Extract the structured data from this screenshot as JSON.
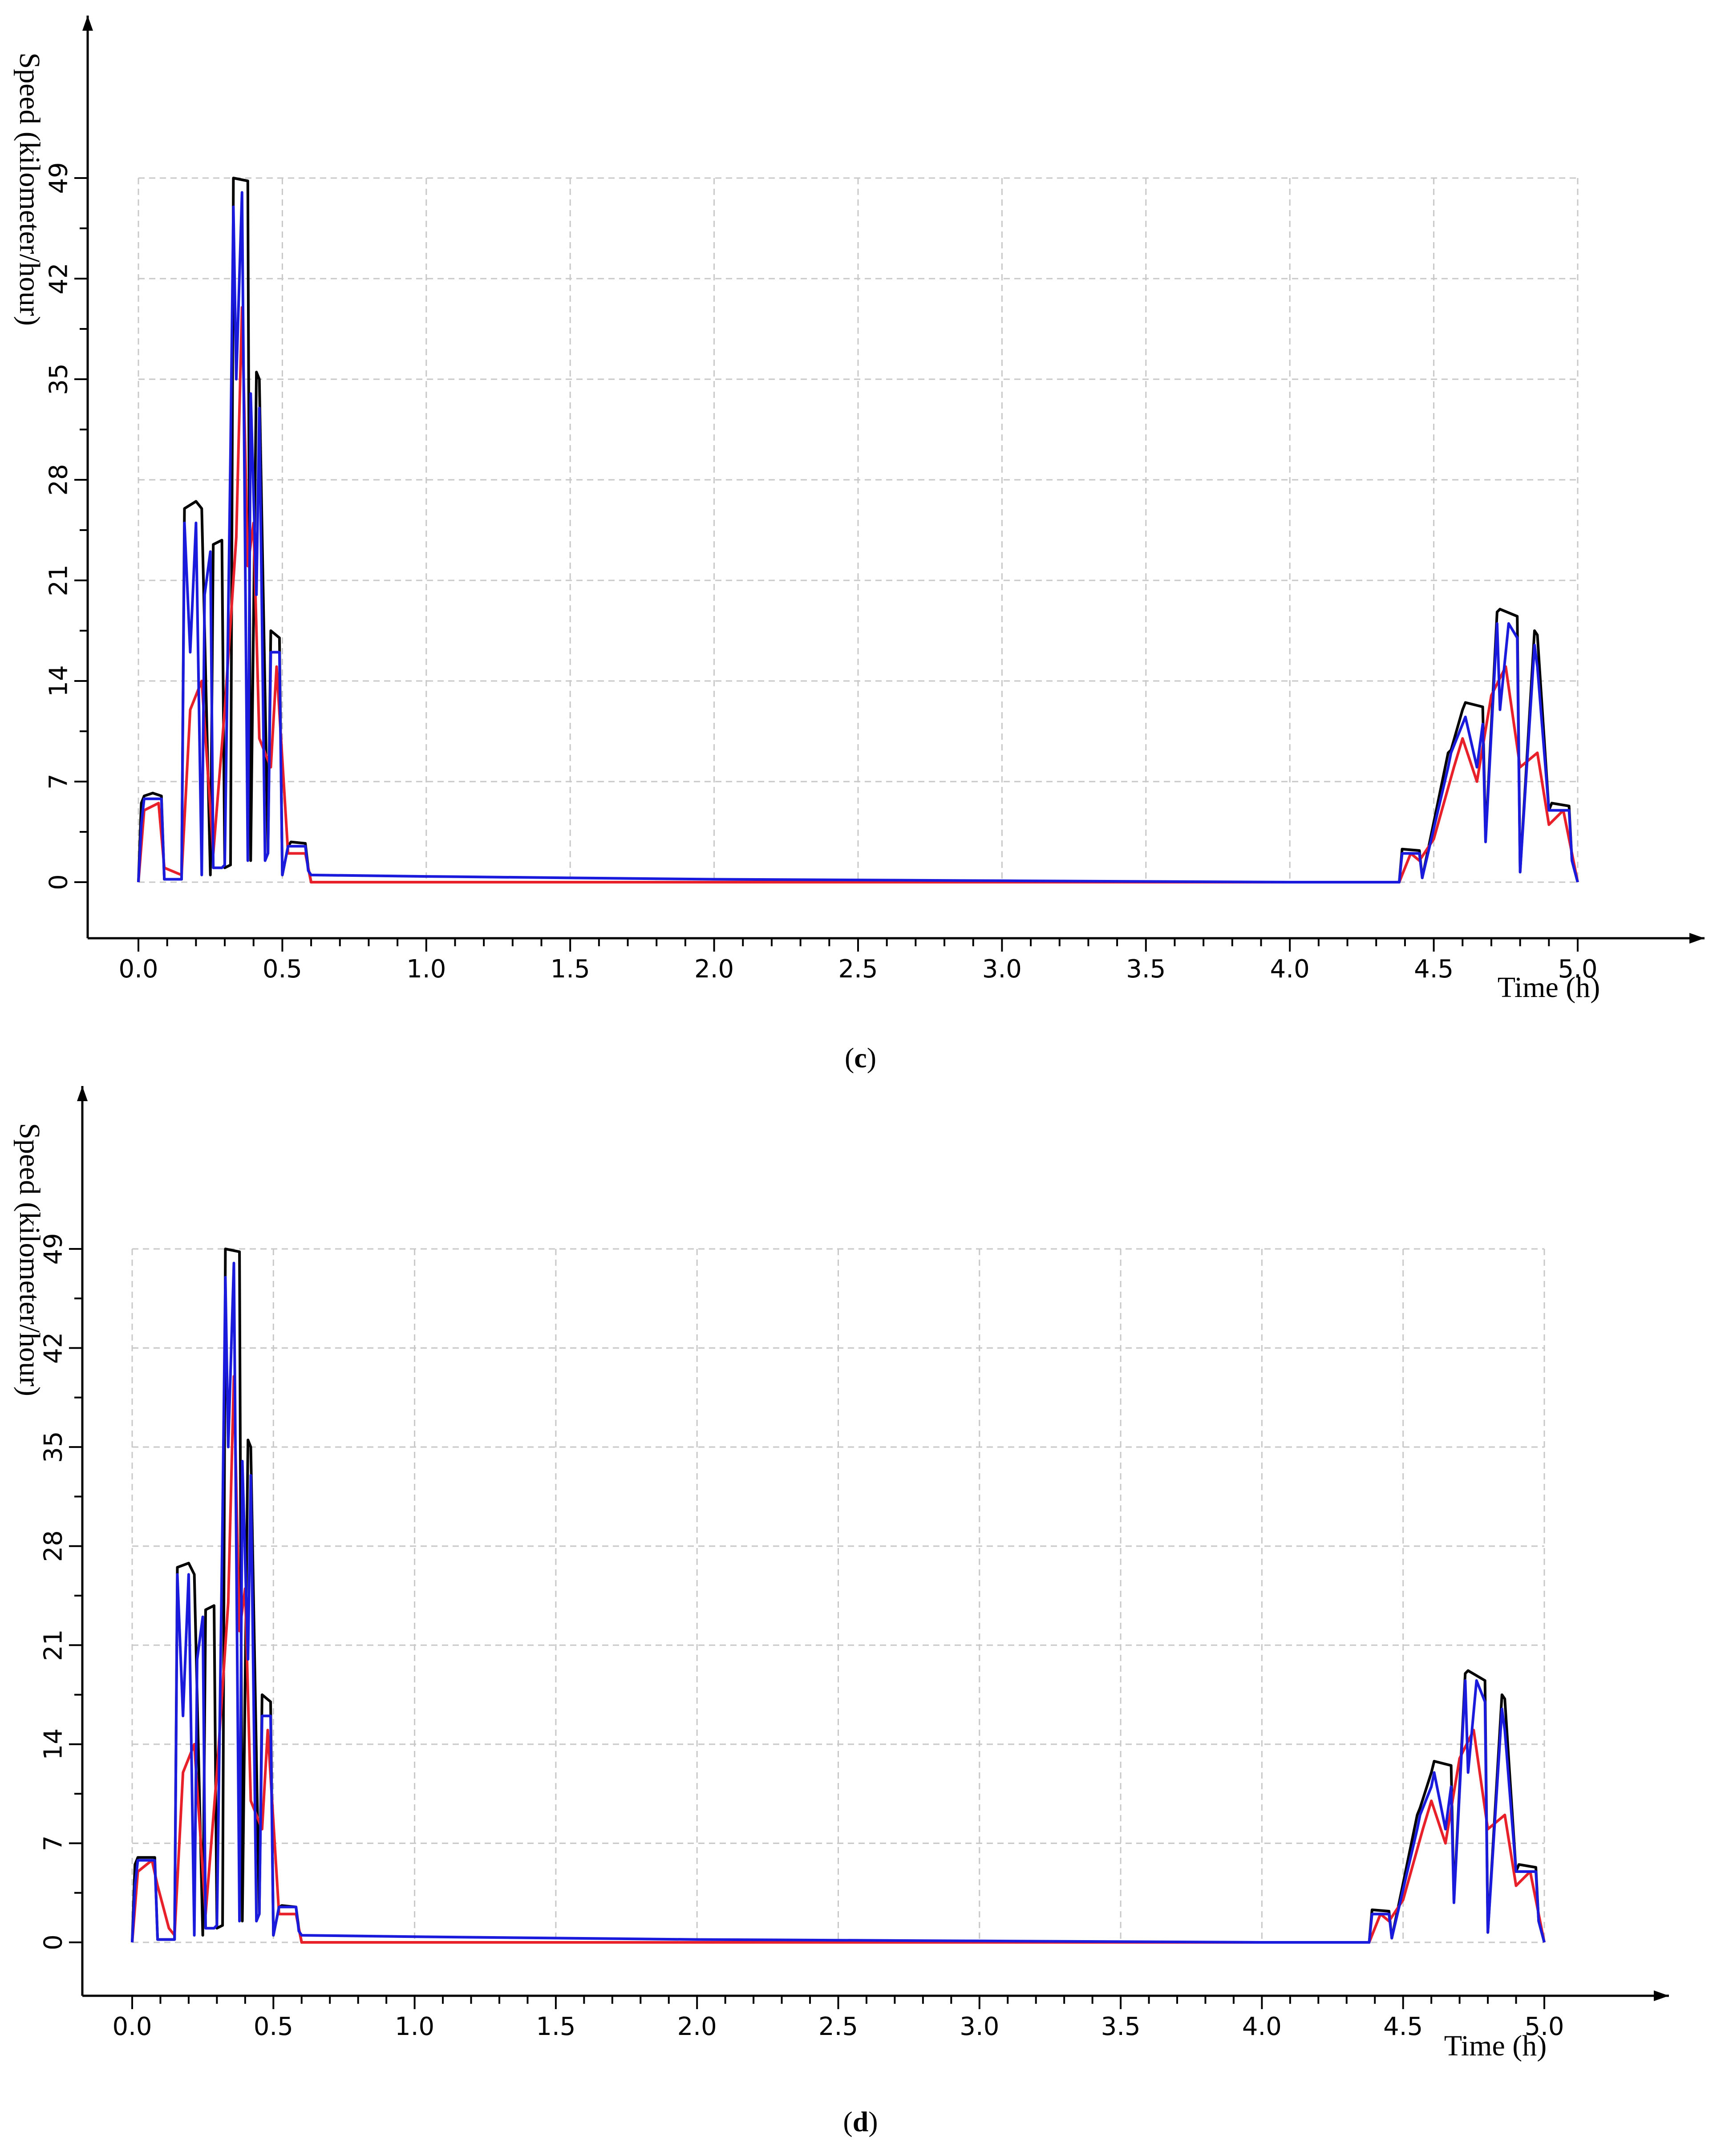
{
  "chart_data": [
    {
      "type": "line",
      "caption": "c",
      "xlabel": "Time (h)",
      "ylabel": "Speed (kilometer/hour)",
      "xlim": [
        0,
        5
      ],
      "ylim": [
        0,
        49
      ],
      "x_ticks": [
        "0.0",
        "0.5",
        "1.0",
        "1.5",
        "2.0",
        "2.5",
        "3.0",
        "3.5",
        "4.0",
        "4.5",
        "5.0"
      ],
      "y_ticks": [
        "0",
        "7",
        "14",
        "21",
        "28",
        "35",
        "42",
        "49"
      ],
      "grid": true,
      "series": [
        {
          "color": "#000000",
          "x": [
            0.0,
            0.01,
            0.02,
            0.05,
            0.08,
            0.09,
            0.15,
            0.16,
            0.2,
            0.22,
            0.25,
            0.26,
            0.29,
            0.3,
            0.32,
            0.33,
            0.38,
            0.39,
            0.41,
            0.42,
            0.45,
            0.46,
            0.49,
            0.5,
            0.52,
            0.53,
            0.58,
            0.59,
            0.6,
            1.0,
            2.0,
            3.0,
            4.0,
            4.38,
            4.39,
            4.45,
            4.46,
            4.55,
            4.56,
            4.6,
            4.61,
            4.67,
            4.68,
            4.72,
            4.73,
            4.79,
            4.8,
            4.85,
            4.86,
            4.9,
            4.91,
            4.97,
            4.98,
            5.0
          ],
          "y": [
            0,
            5.5,
            6,
            6.2,
            6,
            0.2,
            0.2,
            26,
            26.5,
            26,
            0.5,
            23.5,
            23.8,
            1,
            1.2,
            49,
            48.8,
            1.5,
            35.5,
            35,
            2,
            17.5,
            17,
            0.5,
            2.5,
            2.8,
            2.7,
            1,
            0,
            0,
            0,
            0,
            0,
            0,
            2.3,
            2.2,
            0.3,
            9,
            9.2,
            12,
            12.5,
            12.2,
            3,
            18.8,
            19,
            18.5,
            0.7,
            17.5,
            17.2,
            5,
            5.5,
            5.3,
            1.5,
            0
          ]
        },
        {
          "color": "#e8202a",
          "x": [
            0.0,
            0.02,
            0.07,
            0.09,
            0.15,
            0.18,
            0.22,
            0.26,
            0.3,
            0.34,
            0.36,
            0.38,
            0.4,
            0.42,
            0.46,
            0.48,
            0.52,
            0.58,
            0.6,
            1.0,
            2.0,
            3.0,
            4.0,
            4.1,
            4.38,
            4.42,
            4.45,
            4.5,
            4.57,
            4.6,
            4.65,
            4.7,
            4.75,
            4.8,
            4.86,
            4.9,
            4.95,
            4.98,
            5.0
          ],
          "y": [
            0,
            5,
            5.5,
            1,
            0.5,
            12,
            14,
            2,
            12,
            24,
            40,
            22,
            25,
            10,
            8,
            15,
            2,
            2,
            0,
            0,
            0,
            0,
            0,
            0,
            0,
            2,
            1.5,
            3,
            8,
            10,
            7,
            13,
            15,
            8,
            9,
            4,
            5,
            2,
            0
          ]
        },
        {
          "color": "#1a1adc",
          "x": [
            0.0,
            0.01,
            0.02,
            0.08,
            0.09,
            0.15,
            0.16,
            0.18,
            0.2,
            0.22,
            0.23,
            0.25,
            0.26,
            0.29,
            0.3,
            0.32,
            0.33,
            0.34,
            0.36,
            0.38,
            0.39,
            0.41,
            0.42,
            0.44,
            0.45,
            0.46,
            0.49,
            0.5,
            0.52,
            0.53,
            0.58,
            0.59,
            0.6,
            1.0,
            2.0,
            3.0,
            4.0,
            4.38,
            4.39,
            4.45,
            4.46,
            4.55,
            4.56,
            4.6,
            4.61,
            4.65,
            4.67,
            4.68,
            4.72,
            4.73,
            4.76,
            4.79,
            4.8,
            4.85,
            4.86,
            4.9,
            4.91,
            4.97,
            4.98,
            5.0
          ],
          "y": [
            0,
            4,
            5.8,
            5.8,
            0.2,
            0.2,
            25,
            16,
            25,
            0.5,
            20,
            23,
            1,
            1,
            1.2,
            30,
            47,
            35,
            48,
            1.5,
            34,
            20,
            33,
            1.5,
            2,
            16,
            16,
            0.5,
            2.5,
            2.5,
            2.5,
            0.8,
            0.5,
            0.4,
            0.2,
            0.1,
            0,
            0,
            2,
            2,
            0.3,
            8,
            9,
            11,
            11.5,
            8,
            11,
            2.8,
            18,
            12,
            18,
            17,
            0.7,
            16.5,
            15,
            5,
            5,
            5,
            1.5,
            0
          ]
        }
      ]
    },
    {
      "type": "line",
      "caption": "d",
      "xlabel": "Time (h)",
      "ylabel": "Speed (kilometer/hour)",
      "xlim": [
        0,
        5
      ],
      "ylim": [
        0,
        49
      ],
      "x_ticks": [
        "0.0",
        "0.5",
        "1.0",
        "1.5",
        "2.0",
        "2.5",
        "3.0",
        "3.5",
        "4.0",
        "4.5",
        "5.0"
      ],
      "y_ticks": [
        "0",
        "7",
        "14",
        "21",
        "28",
        "35",
        "42",
        "49"
      ],
      "grid": true,
      "series": [
        {
          "color": "#000000",
          "x": [
            0.0,
            0.01,
            0.02,
            0.05,
            0.08,
            0.09,
            0.15,
            0.16,
            0.2,
            0.22,
            0.25,
            0.26,
            0.29,
            0.3,
            0.32,
            0.33,
            0.38,
            0.39,
            0.41,
            0.42,
            0.45,
            0.46,
            0.49,
            0.5,
            0.52,
            0.53,
            0.58,
            0.59,
            0.6,
            1.0,
            2.0,
            3.0,
            4.0,
            4.38,
            4.39,
            4.45,
            4.46,
            4.55,
            4.56,
            4.6,
            4.61,
            4.67,
            4.68,
            4.72,
            4.73,
            4.79,
            4.8,
            4.85,
            4.86,
            4.9,
            4.91,
            4.97,
            4.98,
            5.0
          ],
          "y": [
            0,
            5.5,
            6,
            6,
            6,
            0.2,
            0.2,
            26.5,
            26.8,
            26,
            0.5,
            23.5,
            23.8,
            1,
            1.2,
            49,
            48.8,
            1.5,
            35.5,
            35,
            2,
            17.5,
            17,
            0.5,
            2.5,
            2.6,
            2.5,
            1,
            0,
            0,
            0,
            0,
            0,
            0,
            2.3,
            2.2,
            0.3,
            9,
            9.5,
            12,
            12.8,
            12.5,
            3,
            19,
            19.2,
            18.5,
            0.7,
            17.5,
            17.2,
            5,
            5.5,
            5.3,
            1.5,
            0
          ]
        },
        {
          "color": "#e8202a",
          "x": [
            0.0,
            0.02,
            0.07,
            0.09,
            0.13,
            0.15,
            0.18,
            0.22,
            0.26,
            0.3,
            0.34,
            0.36,
            0.38,
            0.4,
            0.42,
            0.46,
            0.48,
            0.52,
            0.58,
            0.6,
            1.0,
            2.0,
            3.0,
            4.0,
            4.1,
            4.38,
            4.42,
            4.45,
            4.5,
            4.57,
            4.6,
            4.65,
            4.7,
            4.75,
            4.8,
            4.86,
            4.9,
            4.95,
            4.98,
            5.0
          ],
          "y": [
            0,
            5,
            5.8,
            4,
            1,
            0.5,
            12,
            14,
            2,
            12,
            24,
            40,
            22,
            25,
            10,
            8,
            15,
            2,
            2,
            0,
            0,
            0,
            0,
            0,
            0,
            0,
            2,
            1.5,
            3,
            8,
            10,
            7,
            13,
            15,
            8,
            9,
            4,
            5,
            2,
            0
          ]
        },
        {
          "color": "#1a1adc",
          "x": [
            0.0,
            0.01,
            0.02,
            0.08,
            0.09,
            0.15,
            0.16,
            0.18,
            0.2,
            0.22,
            0.23,
            0.25,
            0.26,
            0.29,
            0.3,
            0.32,
            0.33,
            0.34,
            0.36,
            0.38,
            0.39,
            0.41,
            0.42,
            0.44,
            0.45,
            0.46,
            0.49,
            0.5,
            0.52,
            0.53,
            0.58,
            0.59,
            0.6,
            1.0,
            2.0,
            3.0,
            4.0,
            4.38,
            4.39,
            4.45,
            4.46,
            4.55,
            4.56,
            4.6,
            4.61,
            4.65,
            4.67,
            4.68,
            4.72,
            4.73,
            4.76,
            4.79,
            4.8,
            4.85,
            4.86,
            4.9,
            4.91,
            4.97,
            4.98,
            5.0
          ],
          "y": [
            0,
            4,
            5.8,
            5.8,
            0.2,
            0.2,
            26,
            16,
            26,
            0.5,
            20,
            23,
            1,
            1,
            1.2,
            30,
            47,
            35,
            48,
            1.5,
            34,
            20,
            33,
            1.5,
            2,
            16,
            16,
            0.5,
            2.5,
            2.5,
            2.5,
            0.8,
            0.5,
            0.4,
            0.2,
            0.1,
            0,
            0,
            2,
            2,
            0.3,
            8,
            9,
            11,
            12,
            8,
            11,
            2.8,
            18.5,
            12,
            18.5,
            17,
            0.7,
            16.5,
            15,
            5,
            5,
            5,
            1.5,
            0
          ]
        }
      ]
    }
  ]
}
